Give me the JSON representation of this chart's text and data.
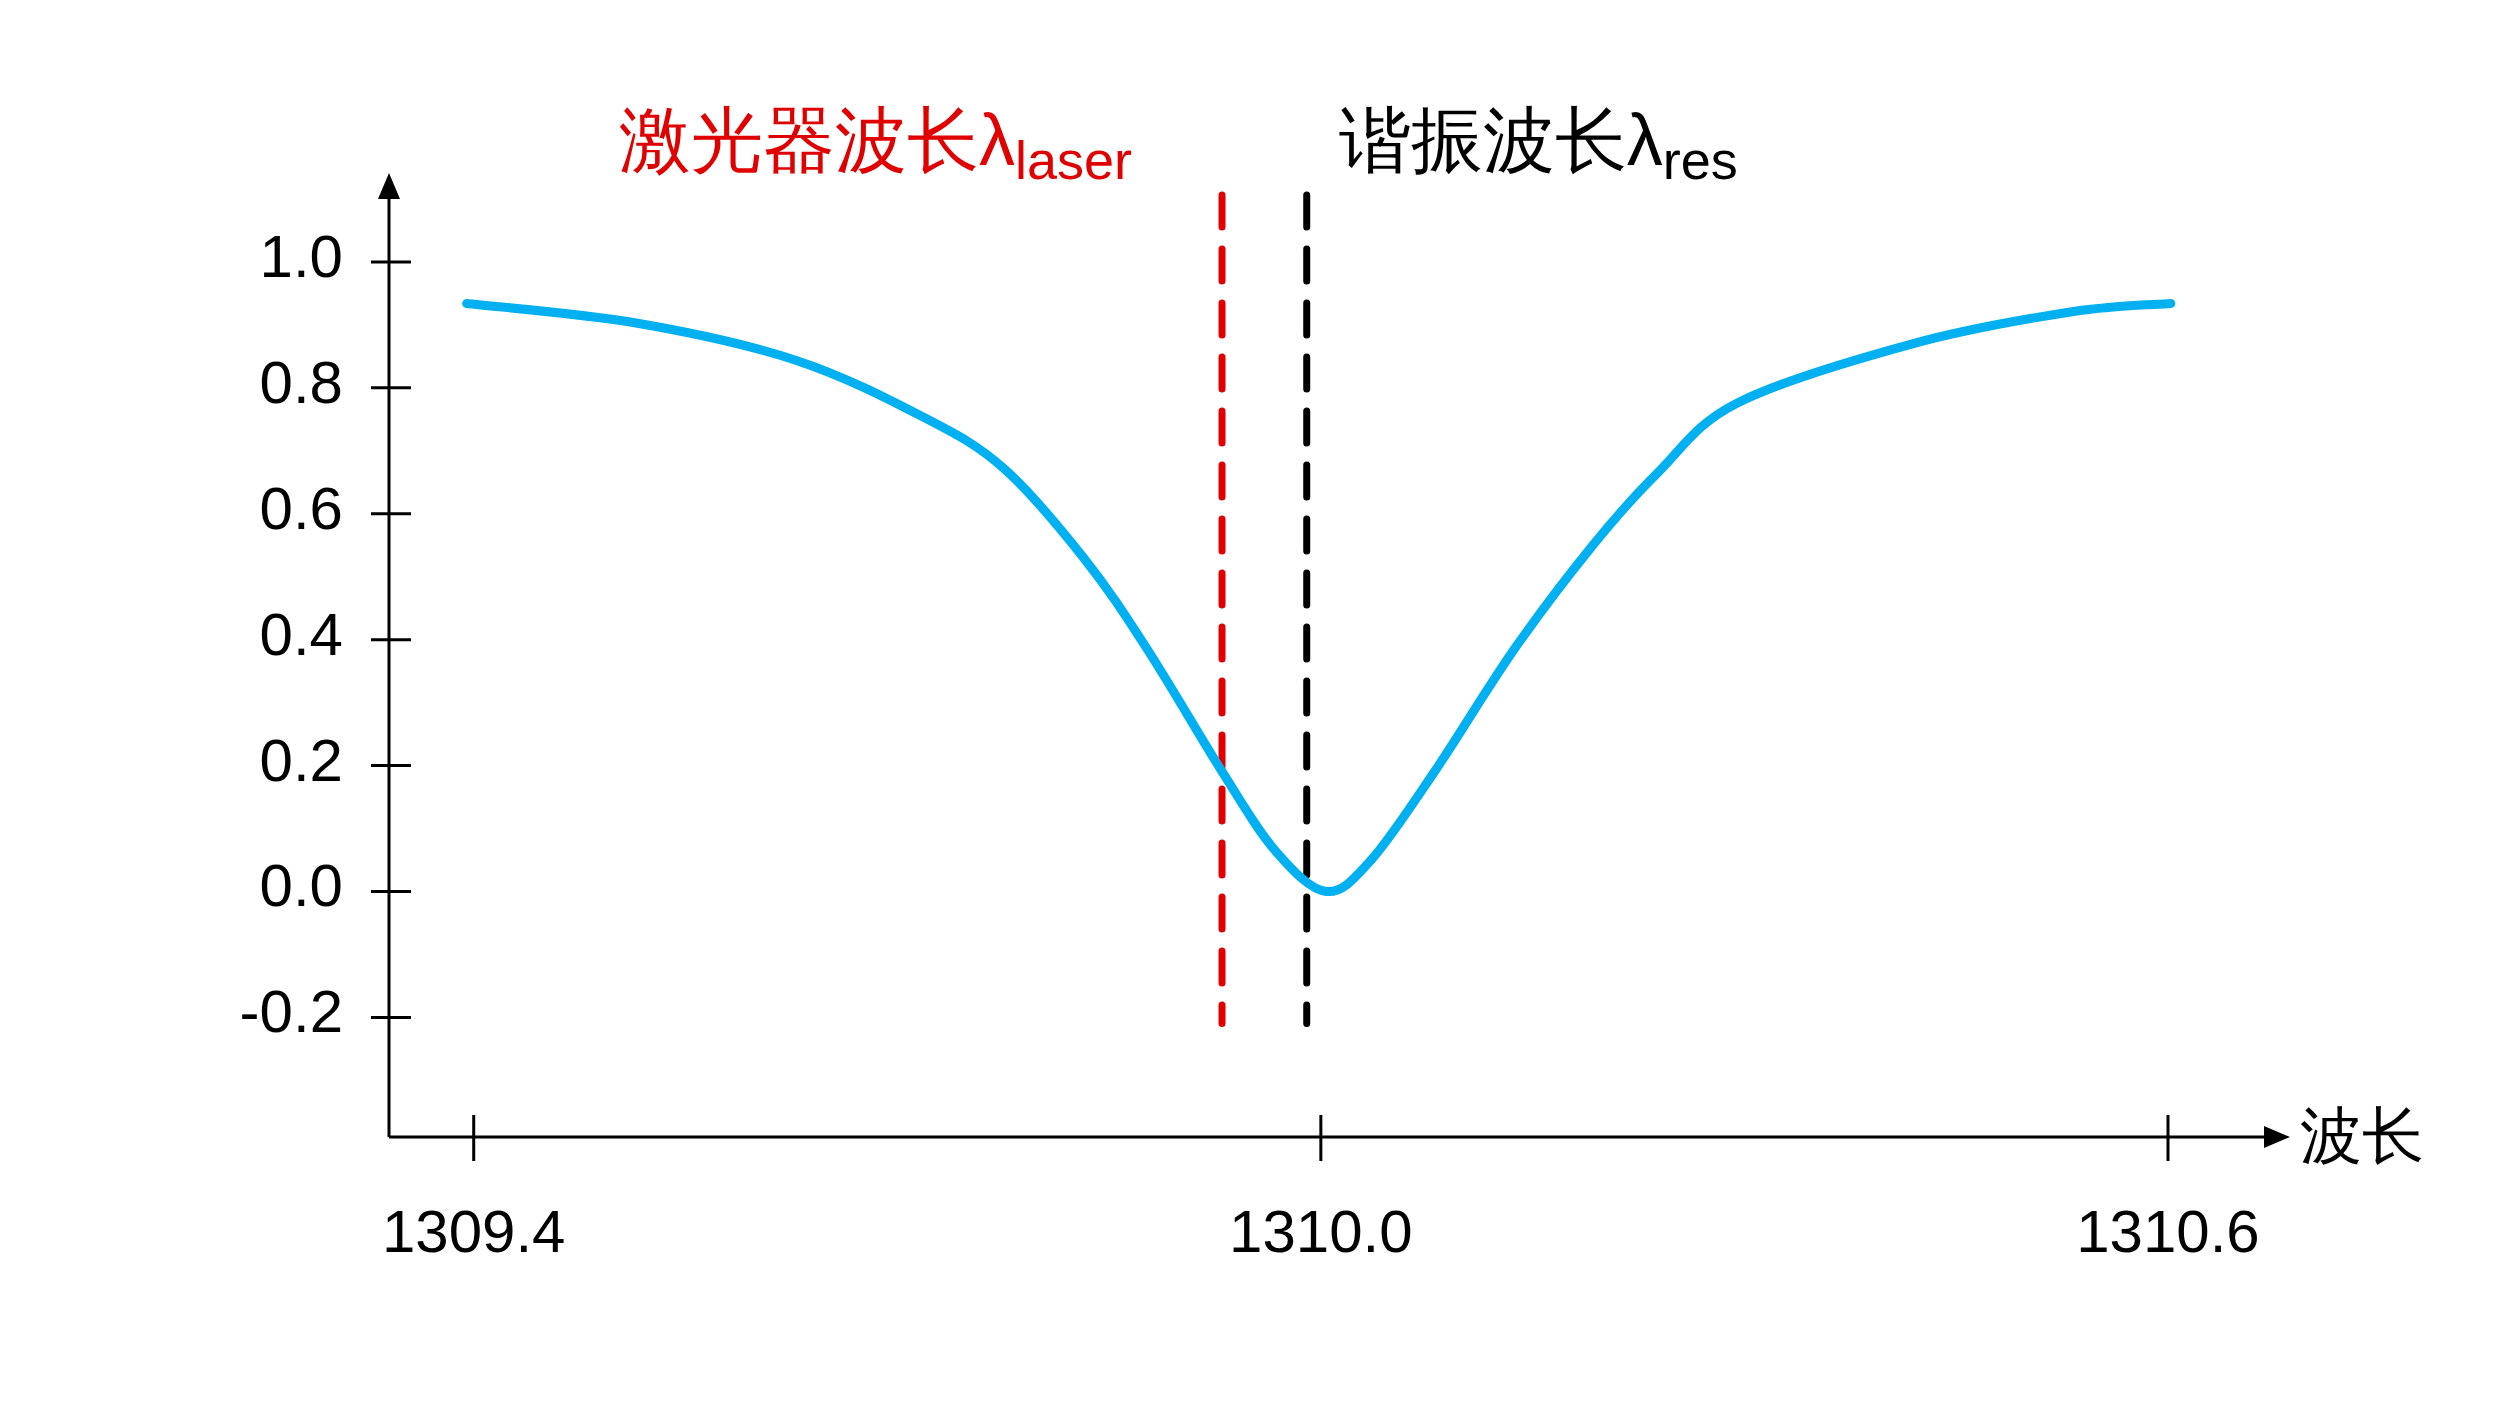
{
  "chart_data": {
    "type": "line",
    "xlabel": "波长",
    "xlim": [
      1309.34,
      1310.668
    ],
    "ylim": [
      -0.39,
      1.1
    ],
    "xticks": [
      1309.4,
      {
        "value": 1310.0,
        "label": "1310.0"
      },
      1310.6
    ],
    "yticks": [
      -0.2,
      {
        "value": 0,
        "label": "0.0"
      },
      0.2,
      0.4,
      0.6,
      0.8,
      {
        "value": 1.0,
        "label": "1.0"
      }
    ],
    "series": [
      {
        "color": "#00b0f0",
        "x": [
          1309.395,
          1309.515,
          1309.628,
          1309.718,
          1309.775,
          1309.832,
          1309.877,
          1309.931,
          1309.968,
          1310.004,
          1310.036,
          1310.081,
          1310.137,
          1310.193,
          1310.239,
          1310.295,
          1310.419,
          1310.532,
          1310.602
        ],
        "values": [
          0.934,
          0.903,
          0.844,
          0.754,
          0.673,
          0.53,
          0.385,
          0.187,
          0.064,
          0.0,
          0.051,
          0.192,
          0.385,
          0.551,
          0.666,
          0.776,
          0.87,
          0.921,
          0.934
        ]
      }
    ],
    "ref_lines": [
      {
        "axis": "x",
        "value": 1309.93,
        "label": "激光器波长λ$_{laser}$",
        "color": "#e00000",
        "line_style": "dashed"
      },
      {
        "axis": "x",
        "value": 1309.99,
        "label": "谐振波长λ$_{res}$",
        "color": "#000000",
        "line_style": "dashed"
      }
    ]
  }
}
